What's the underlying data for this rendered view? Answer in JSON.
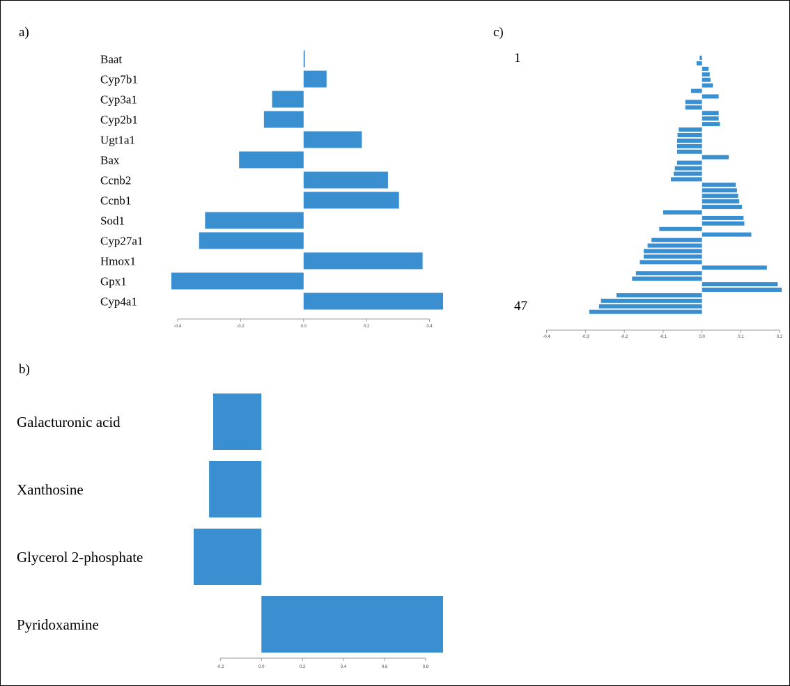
{
  "colors": {
    "bar": "#3a8fd0",
    "axis": "#999999",
    "text": "#000000"
  },
  "chart_data": [
    {
      "panel": "a)",
      "type": "bar",
      "orientation": "horizontal",
      "categories": [
        "Baat",
        "Cyp7b1",
        "Cyp3a1",
        "Cyp2b1",
        "Ugt1a1",
        "Bax",
        "Ccnb2",
        "Ccnb1",
        "Sod1",
        "Cyp27a1",
        "Hmox1",
        "Gpx1",
        "Cyp4a1"
      ],
      "values": [
        0.004,
        0.073,
        -0.1,
        -0.126,
        0.185,
        -0.205,
        0.268,
        0.303,
        -0.313,
        -0.332,
        0.378,
        -0.42,
        0.443
      ],
      "xlim": [
        -0.42,
        0.443
      ],
      "xticks": [
        "-0.4",
        "-0.2",
        "0.0",
        "0.2",
        "0.4"
      ],
      "xtick_values": [
        -0.4,
        -0.2,
        0.0,
        0.2,
        0.4
      ]
    },
    {
      "panel": "b)",
      "type": "bar",
      "orientation": "horizontal",
      "categories": [
        "Galacturonic acid",
        "Xanthosine",
        "Glycerol 2-phosphate",
        "Pyridoxamine"
      ],
      "values": [
        -0.235,
        -0.255,
        -0.33,
        0.885
      ],
      "xlim": [
        -0.33,
        0.885
      ],
      "xticks": [
        "-0.2",
        "0.0",
        "0.2",
        "0.4",
        "0.6",
        "0.8"
      ],
      "xtick_values": [
        -0.2,
        0.0,
        0.2,
        0.4,
        0.6,
        0.8
      ]
    },
    {
      "panel": "c)",
      "type": "bar",
      "orientation": "horizontal",
      "row_labels": [
        "1",
        "47"
      ],
      "values": [
        -0.006,
        -0.014,
        0.017,
        0.02,
        0.022,
        0.028,
        -0.028,
        0.043,
        -0.043,
        -0.043,
        0.043,
        0.043,
        0.046,
        -0.06,
        -0.063,
        -0.064,
        -0.064,
        -0.064,
        0.069,
        -0.064,
        -0.07,
        -0.073,
        -0.08,
        0.087,
        0.09,
        0.093,
        0.096,
        0.103,
        -0.1,
        0.107,
        0.109,
        -0.11,
        0.127,
        -0.13,
        -0.14,
        -0.15,
        -0.15,
        -0.16,
        0.167,
        -0.17,
        -0.18,
        0.195,
        0.205,
        -0.22,
        -0.26,
        -0.265,
        -0.29
      ],
      "xlim": [
        -0.41,
        0.205
      ],
      "xticks": [
        "-0.4",
        "-0.3",
        "-0.2",
        "-0.1",
        "0.0",
        "0.1",
        "0.2"
      ],
      "xtick_values": [
        -0.4,
        -0.3,
        -0.2,
        -0.1,
        0.0,
        0.1,
        0.2
      ]
    }
  ]
}
